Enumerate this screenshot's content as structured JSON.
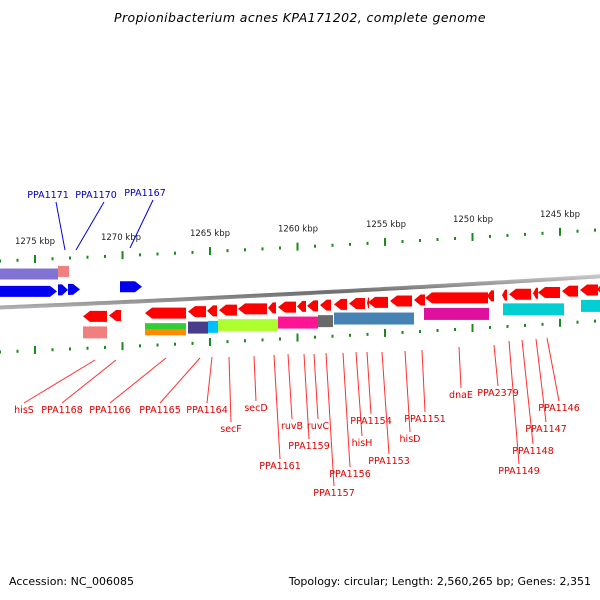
{
  "title": "Propionibacterium acnes KPA171202, complete genome",
  "footer": {
    "accession": "Accession: NC_006085",
    "summary": "Topology: circular; Length: 2,560,265 bp; Genes: 2,351"
  },
  "colors": {
    "backbone": "#7a7a7a",
    "forward_gene": "#0000ee",
    "reverse_gene": "#ff0000",
    "tick": "#1a8a1a",
    "forward_label": "#0000cc",
    "reverse_label": "#e00000"
  },
  "scale": {
    "unit": "kbp",
    "major_ticks": [
      {
        "label": "1275 kbp"
      },
      {
        "label": "1270 kbp"
      },
      {
        "label": "1265 kbp"
      },
      {
        "label": "1260 kbp"
      },
      {
        "label": "1255 kbp"
      },
      {
        "label": "1250 kbp"
      },
      {
        "label": "1245 kbp"
      }
    ]
  },
  "forward_labels": [
    "PPA1171",
    "PPA1170",
    "PPA1167"
  ],
  "reverse_labels": [
    "hisS",
    "PPA1168",
    "PPA1166",
    "PPA1165",
    "PPA1164",
    "secF",
    "secD",
    "PPA1161",
    "ruvB",
    "PPA1159",
    "ruvC",
    "PPA1157",
    "PPA1156",
    "hisH",
    "PPA1154",
    "PPA1153",
    "hisD",
    "PPA1151",
    "dnaE",
    "PPA2379",
    "PPA1149",
    "PPA1148",
    "PPA1147",
    "PPA1146"
  ],
  "cog_colors": [
    "#6a5acd",
    "#f08080",
    "#f08080",
    "#32cd32",
    "#ff8c00",
    "#483d8b",
    "#00bfff",
    "#adff2f",
    "#ff1493",
    "#696969",
    "#4682b4",
    "#e0109f",
    "#00ced1"
  ]
}
